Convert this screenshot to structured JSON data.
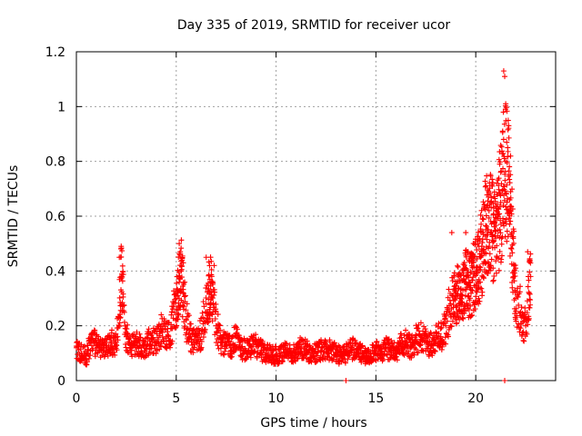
{
  "chart_data": {
    "type": "scatter",
    "title": "Day 335 of 2019, SRMTID for receiver ucor",
    "xlabel": "GPS time / hours",
    "ylabel": "SRMTID / TECUs",
    "xlim": [
      0,
      24
    ],
    "ylim": [
      0,
      1.2
    ],
    "x_ticks": [
      0,
      5,
      10,
      15,
      20
    ],
    "y_ticks": [
      0,
      0.2,
      0.4,
      0.6,
      0.8,
      1,
      1.2
    ],
    "x_tick_labels": [
      "0",
      "5",
      "10",
      "15",
      "20"
    ],
    "y_tick_labels": [
      "0",
      "0.2",
      "0.4",
      "0.6",
      "0.8",
      "1",
      "1.2"
    ],
    "grid": true,
    "marker": "+",
    "color": "#ff0000",
    "series": [
      {
        "name": "SRMTID",
        "sample_step_hours": 0.25,
        "x": [
          0.0,
          0.25,
          0.5,
          0.75,
          1.0,
          1.25,
          1.5,
          1.75,
          2.0,
          2.25,
          2.5,
          2.75,
          3.0,
          3.25,
          3.5,
          3.75,
          4.0,
          4.25,
          4.5,
          4.75,
          5.0,
          5.25,
          5.5,
          5.75,
          6.0,
          6.25,
          6.5,
          6.75,
          7.0,
          7.25,
          7.5,
          7.75,
          8.0,
          8.25,
          8.5,
          8.75,
          9.0,
          9.25,
          9.5,
          9.75,
          10.0,
          10.25,
          10.5,
          10.75,
          11.0,
          11.25,
          11.5,
          11.75,
          12.0,
          12.25,
          12.5,
          12.75,
          13.0,
          13.25,
          13.5,
          13.75,
          14.0,
          14.25,
          14.5,
          14.75,
          15.0,
          15.25,
          15.5,
          15.75,
          16.0,
          16.25,
          16.5,
          16.75,
          17.0,
          17.25,
          17.5,
          17.75,
          18.0,
          18.25,
          18.5,
          18.75,
          19.0,
          19.25,
          19.5,
          19.75,
          20.0,
          20.25,
          20.5,
          20.75,
          21.0,
          21.25,
          21.5,
          21.75,
          22.0,
          22.25,
          22.5,
          22.75
        ],
        "y": [
          0.12,
          0.1,
          0.09,
          0.15,
          0.13,
          0.11,
          0.12,
          0.14,
          0.13,
          0.38,
          0.16,
          0.12,
          0.14,
          0.12,
          0.13,
          0.15,
          0.14,
          0.18,
          0.16,
          0.19,
          0.3,
          0.4,
          0.22,
          0.15,
          0.14,
          0.17,
          0.28,
          0.36,
          0.2,
          0.15,
          0.13,
          0.12,
          0.16,
          0.12,
          0.11,
          0.12,
          0.13,
          0.11,
          0.1,
          0.1,
          0.09,
          0.1,
          0.11,
          0.1,
          0.1,
          0.12,
          0.11,
          0.1,
          0.1,
          0.11,
          0.12,
          0.11,
          0.1,
          0.09,
          0.1,
          0.12,
          0.11,
          0.1,
          0.09,
          0.1,
          0.11,
          0.1,
          0.12,
          0.11,
          0.1,
          0.13,
          0.14,
          0.12,
          0.15,
          0.16,
          0.14,
          0.13,
          0.15,
          0.16,
          0.2,
          0.28,
          0.32,
          0.3,
          0.36,
          0.34,
          0.4,
          0.45,
          0.55,
          0.58,
          0.52,
          0.65,
          0.8,
          0.62,
          0.3,
          0.25,
          0.2,
          0.38
        ]
      }
    ],
    "extra_points": [
      {
        "x": 21.4,
        "y": 1.13
      },
      {
        "x": 21.45,
        "y": 1.11
      },
      {
        "x": 21.5,
        "y": 1.01
      },
      {
        "x": 21.55,
        "y": 0.87
      },
      {
        "x": 21.6,
        "y": 0.85
      },
      {
        "x": 21.2,
        "y": 0.79
      },
      {
        "x": 21.05,
        "y": 0.72
      },
      {
        "x": 21.7,
        "y": 0.66
      },
      {
        "x": 20.9,
        "y": 0.63
      },
      {
        "x": 18.8,
        "y": 0.54
      },
      {
        "x": 19.5,
        "y": 0.54
      },
      {
        "x": 5.15,
        "y": 0.5
      },
      {
        "x": 5.2,
        "y": 0.47
      },
      {
        "x": 6.5,
        "y": 0.45
      },
      {
        "x": 2.15,
        "y": 0.45
      },
      {
        "x": 22.6,
        "y": 0.47
      },
      {
        "x": 22.7,
        "y": 0.44
      },
      {
        "x": 13.5,
        "y": 0.0
      },
      {
        "x": 21.45,
        "y": 0.0
      },
      {
        "x": 6.9,
        "y": 0.42
      },
      {
        "x": 20.3,
        "y": 0.48
      }
    ]
  }
}
